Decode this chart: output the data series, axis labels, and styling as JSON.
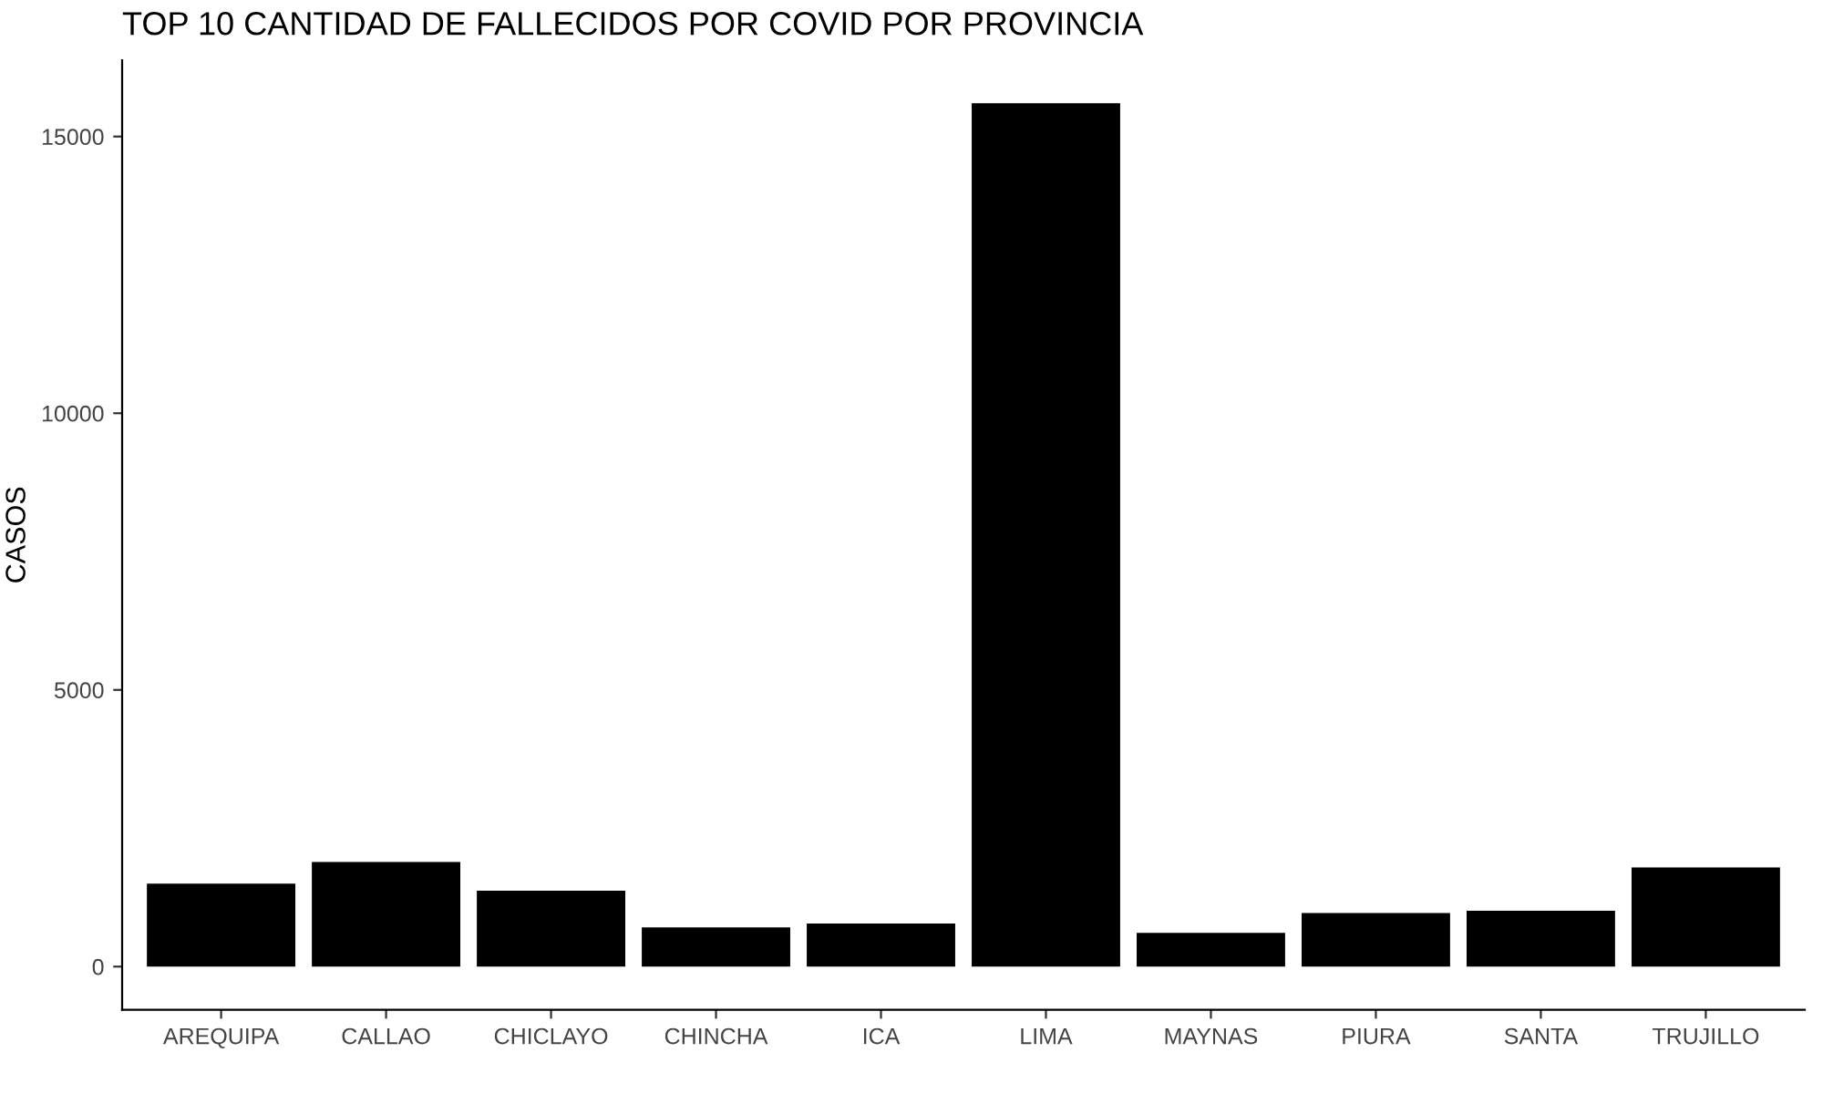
{
  "chart_data": {
    "type": "bar",
    "title": "TOP 10 CANTIDAD DE FALLECIDOS POR COVID POR PROVINCIA",
    "ylabel": "CASOS",
    "categories": [
      "AREQUIPA",
      "CALLAO",
      "CHICLAYO",
      "CHINCHA",
      "ICA",
      "LIMA",
      "MAYNAS",
      "PIURA",
      "SANTA",
      "TRUJILLO"
    ],
    "values": [
      1500,
      1890,
      1370,
      710,
      780,
      15600,
      610,
      970,
      1010,
      1790
    ],
    "color": "#000000",
    "ylim": [
      -780,
      16380
    ],
    "yticks": [
      0,
      5000,
      10000,
      15000
    ],
    "grid": false
  }
}
